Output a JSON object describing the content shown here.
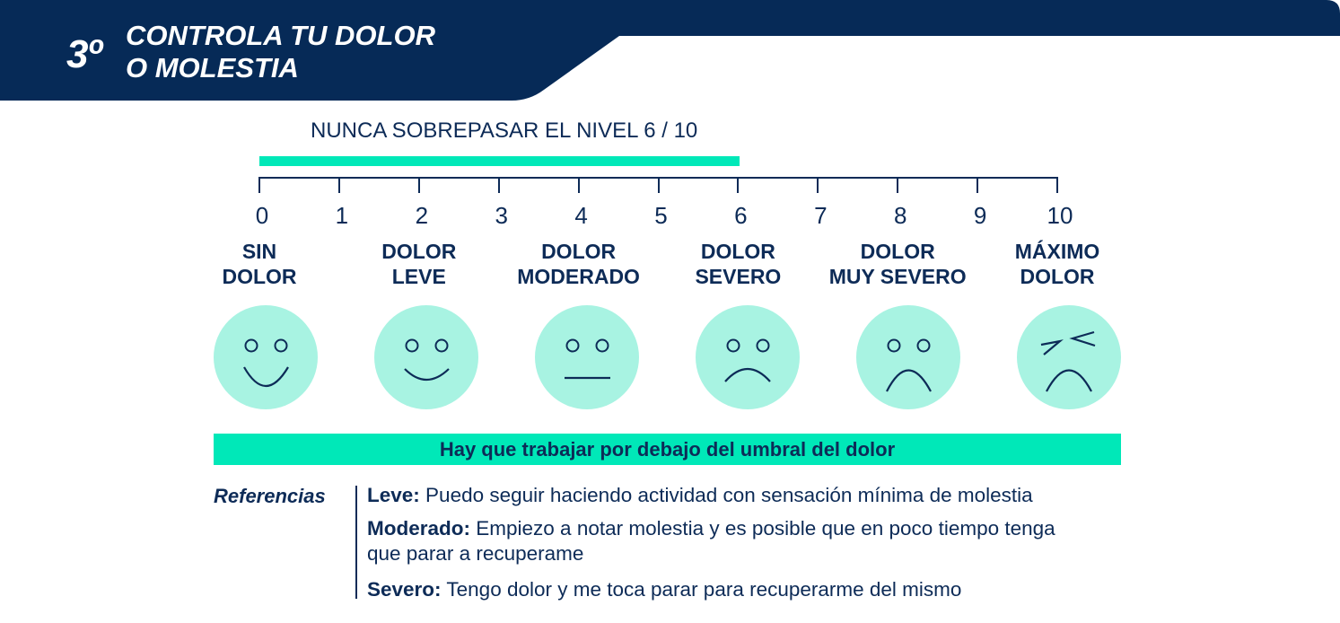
{
  "header": {
    "step": "3º",
    "title_line1": "CONTROLA TU DOLOR",
    "title_line2": "O MOLESTIA",
    "bg_color": "#062a57"
  },
  "limit": {
    "label": "NUNCA SOBREPASAR EL NIVEL 6 / 10",
    "max_level": 6,
    "bar_color": "#00e8b8"
  },
  "scale": {
    "min": 0,
    "max": 10,
    "ticks": [
      "0",
      "1",
      "2",
      "3",
      "4",
      "5",
      "6",
      "7",
      "8",
      "9",
      "10"
    ]
  },
  "categories": [
    {
      "line1": "SIN",
      "line2": "DOLOR",
      "level": 0,
      "face": "big-smile"
    },
    {
      "line1": "DOLOR",
      "line2": "LEVE",
      "level": 2,
      "face": "smile"
    },
    {
      "line1": "DOLOR",
      "line2": "MODERADO",
      "level": 4,
      "face": "neutral"
    },
    {
      "line1": "DOLOR",
      "line2": "SEVERO",
      "level": 6,
      "face": "frown"
    },
    {
      "line1": "DOLOR",
      "line2": "MUY SEVERO",
      "level": 8,
      "face": "big-frown"
    },
    {
      "line1": "MÁXIMO",
      "line2": "DOLOR",
      "level": 10,
      "face": "squint-frown"
    }
  ],
  "face_color": "#a8f3e2",
  "threshold": {
    "text": "Hay que trabajar por debajo del umbral del dolor"
  },
  "references": {
    "title": "Referencias",
    "items": [
      {
        "term": "Leve:",
        "desc": "Puedo seguir haciendo actividad con sensación mínima de molestia"
      },
      {
        "term": "Moderado:",
        "desc": "Empiezo a notar molestia y es posible que en poco tiempo tenga",
        "desc2": "que parar a recuperame"
      },
      {
        "term": "Severo:",
        "desc": "Tengo dolor y me toca parar para recuperarme del mismo"
      }
    ]
  }
}
